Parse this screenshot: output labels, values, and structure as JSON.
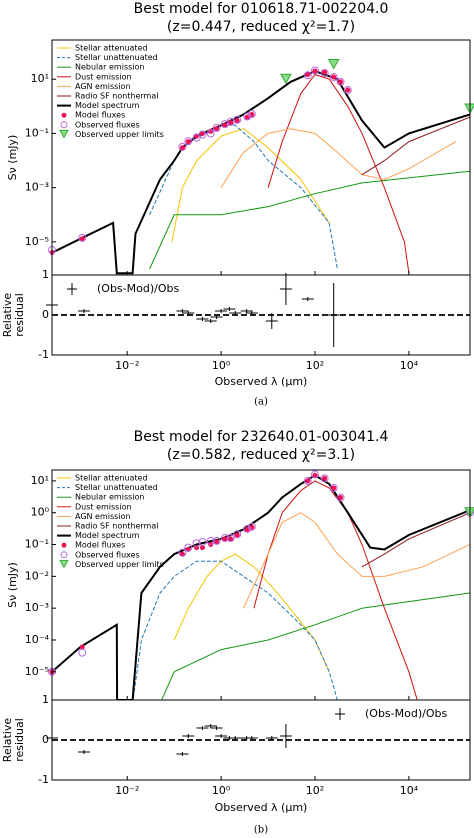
{
  "chart_data": [
    {
      "type": "sed",
      "title": "Best model for 010618.71-002204.0",
      "subtitle": "(z=0.447, reduced χ²=1.7)",
      "caption": "(a)",
      "x_label": "Observed λ (μm)",
      "y_label": "Sν (mJy)",
      "xlog": true,
      "ylog": true,
      "legend": "upper left",
      "xlim": [
        0.00025,
        200000
      ],
      "ylim": [
        6e-07,
        280
      ],
      "xticks": [
        {
          "value": 0.01,
          "label": "10⁻²"
        },
        {
          "value": 1,
          "label": "10⁰"
        },
        {
          "value": 100,
          "label": "10²"
        },
        {
          "value": 10000,
          "label": "10⁴"
        }
      ],
      "yticks": [
        {
          "value": 1e-05,
          "label": "10⁻⁵"
        },
        {
          "value": 0.001,
          "label": "10⁻³"
        },
        {
          "value": 0.1,
          "label": "10⁻¹"
        },
        {
          "value": 10,
          "label": "10¹"
        }
      ],
      "series": [
        {
          "name": "Stellar attenuated",
          "color": "#f5c400",
          "style": "solid",
          "x": [
            0.09,
            0.15,
            0.3,
            1,
            3,
            10,
            50,
            200
          ],
          "values": [
            1e-05,
            0.001,
            0.01,
            0.08,
            0.15,
            0.03,
            0.002,
            5e-05
          ]
        },
        {
          "name": "Stellar unattenuated",
          "color": "#1f77b4",
          "style": "dashed",
          "x": [
            0.03,
            0.1,
            0.2,
            0.5,
            1,
            2,
            5,
            10,
            50,
            200,
            300
          ],
          "values": [
            0.0001,
            0.01,
            0.05,
            0.1,
            0.2,
            0.2,
            0.05,
            0.01,
            0.001,
            5e-05,
            1e-06
          ]
        },
        {
          "name": "Nebular emission",
          "color": "#119911",
          "style": "solid",
          "x": [
            0.03,
            0.1,
            1,
            10,
            100,
            1000,
            200000
          ],
          "values": [
            1e-06,
            0.0001,
            0.0001,
            0.0002,
            0.0006,
            0.0015,
            0.004
          ]
        },
        {
          "name": "Dust emission",
          "color": "#cc1111",
          "style": "solid",
          "x": [
            10,
            20,
            50,
            100,
            200,
            500,
            1000,
            3000,
            8000,
            10000
          ],
          "values": [
            0.001,
            0.05,
            3,
            15,
            10,
            1,
            0.1,
            0.001,
            1e-05,
            7e-07
          ]
        },
        {
          "name": "AGN emission",
          "color": "#ffa050",
          "style": "solid",
          "x": [
            1,
            3,
            10,
            30,
            100,
            300,
            1000,
            3000,
            10000,
            100000
          ],
          "values": [
            0.001,
            0.02,
            0.1,
            0.15,
            0.1,
            0.02,
            0.003,
            0.002,
            0.005,
            0.05
          ]
        },
        {
          "name": "Radio SF nonthermal",
          "color": "#8b1a1a",
          "style": "solid",
          "x": [
            1000,
            3000,
            10000,
            200000
          ],
          "values": [
            0.003,
            0.01,
            0.05,
            0.4
          ]
        },
        {
          "name": "Model spectrum",
          "color": "#000000",
          "style": "thick",
          "x": [
            0.00025,
            0.001,
            0.005,
            0.006,
            0.013,
            0.015,
            0.05,
            0.1,
            0.15,
            0.3,
            1,
            3,
            10,
            30,
            100,
            300,
            1000,
            3000,
            10000,
            200000
          ],
          "values": [
            4e-06,
            1.3e-05,
            5e-05,
            7e-07,
            7e-07,
            2e-05,
            0.002,
            0.01,
            0.03,
            0.08,
            0.2,
            0.5,
            2,
            8,
            20,
            10,
            0.3,
            0.03,
            0.1,
            0.5
          ]
        },
        {
          "name": "Model fluxes",
          "color": "#ee1155",
          "style": "dot",
          "x": [
            0.00025,
            0.0011,
            0.15,
            0.2,
            0.3,
            0.4,
            0.6,
            0.8,
            1.2,
            1.6,
            2.2,
            3.6,
            4.5,
            70,
            100,
            160,
            250,
            350,
            500
          ],
          "values": [
            4e-06,
            1.3e-05,
            0.03,
            0.05,
            0.08,
            0.1,
            0.12,
            0.15,
            0.2,
            0.25,
            0.3,
            0.4,
            0.5,
            15,
            20,
            18,
            12,
            8,
            4
          ]
        },
        {
          "name": "Observed fluxes",
          "color": "#bb66dd",
          "style": "circle",
          "x": [
            0.00025,
            0.0011,
            0.15,
            0.2,
            0.3,
            0.4,
            0.6,
            0.8,
            1.2,
            1.6,
            2.2,
            3.6,
            4.5,
            70,
            100,
            160,
            250,
            350,
            500
          ],
          "values": [
            5e-06,
            1.4e-05,
            0.032,
            0.052,
            0.07,
            0.09,
            0.1,
            0.16,
            0.22,
            0.27,
            0.32,
            0.42,
            0.52,
            14,
            21,
            17,
            12,
            8,
            4
          ]
        },
        {
          "name": "Observed upper limits",
          "color": "#33aa33",
          "style": "triangle",
          "x": [
            24,
            250,
            200000
          ],
          "values": [
            10,
            35,
            0.8
          ]
        }
      ],
      "residual": {
        "name": "(Obs-Mod)/Obs",
        "y_label": [
          "Relative",
          "residual"
        ],
        "legend": "upper left",
        "ylim": [
          -1,
          1
        ],
        "yticks": [
          -1,
          0,
          1
        ],
        "x": [
          0.00025,
          0.0012,
          0.15,
          0.2,
          0.4,
          0.6,
          0.8,
          1,
          1.5,
          2,
          3.5,
          4.5,
          12,
          24,
          70,
          250
        ],
        "values": [
          0.25,
          0.1,
          0.1,
          0.05,
          -0.1,
          -0.15,
          -0.05,
          0.1,
          0.15,
          0.05,
          0.1,
          0.05,
          -0.15,
          0.65,
          0.4,
          0
        ],
        "errors": [
          0.3,
          0.05,
          0.05,
          0.05,
          0.05,
          0.05,
          0.05,
          0.05,
          0.05,
          0.05,
          0.05,
          0.05,
          0.2,
          0.4,
          0.05,
          0.8
        ]
      }
    },
    {
      "type": "sed",
      "title": "Best model for 232640.01-003041.4",
      "subtitle": "(z=0.582, reduced χ²=3.1)",
      "caption": "(b)",
      "x_label": "Observed λ (μm)",
      "y_label": "Sν (mJy)",
      "xlog": true,
      "ylog": true,
      "legend": "upper left",
      "xlim": [
        0.00025,
        200000
      ],
      "ylim": [
        1.3e-06,
        22
      ],
      "xticks": [
        {
          "value": 0.01,
          "label": "10⁻²"
        },
        {
          "value": 1,
          "label": "10⁰"
        },
        {
          "value": 100,
          "label": "10²"
        },
        {
          "value": 10000,
          "label": "10⁴"
        }
      ],
      "yticks": [
        {
          "value": 1e-05,
          "label": "10⁻⁵"
        },
        {
          "value": 0.0001,
          "label": "10⁻⁴"
        },
        {
          "value": 0.001,
          "label": "10⁻³"
        },
        {
          "value": 0.01,
          "label": "10⁻²"
        },
        {
          "value": 0.1,
          "label": "10⁻¹"
        },
        {
          "value": 1,
          "label": "10⁰"
        },
        {
          "value": 10,
          "label": "10¹"
        }
      ],
      "series": [
        {
          "name": "Stellar attenuated",
          "color": "#f5c400",
          "style": "solid",
          "x": [
            0.1,
            0.2,
            0.5,
            1,
            2,
            5,
            20,
            100,
            200
          ],
          "values": [
            0.0001,
            0.001,
            0.01,
            0.03,
            0.05,
            0.02,
            0.002,
            0.0001,
            1e-05
          ]
        },
        {
          "name": "Stellar unattenuated",
          "color": "#1f77b4",
          "style": "dashed",
          "x": [
            0.013,
            0.02,
            0.05,
            0.1,
            0.3,
            1,
            3,
            10,
            50,
            100,
            200,
            300
          ],
          "values": [
            1e-06,
            0.0001,
            0.003,
            0.01,
            0.03,
            0.03,
            0.01,
            0.003,
            0.0003,
            0.0001,
            1e-05,
            1.3e-06
          ]
        },
        {
          "name": "Nebular emission",
          "color": "#119911",
          "style": "solid",
          "x": [
            0.05,
            0.1,
            1,
            10,
            100,
            1000,
            200000
          ],
          "values": [
            1e-06,
            1e-05,
            5e-05,
            0.0001,
            0.0003,
            0.001,
            0.003
          ]
        },
        {
          "name": "Dust emission",
          "color": "#cc1111",
          "style": "solid",
          "x": [
            5,
            10,
            20,
            50,
            100,
            200,
            500,
            1000,
            3000,
            10000,
            15000
          ],
          "values": [
            0.001,
            0.05,
            1,
            5,
            10,
            6,
            1,
            0.1,
            0.001,
            1e-05,
            1.3e-06
          ]
        },
        {
          "name": "AGN emission",
          "color": "#ffa050",
          "style": "solid",
          "x": [
            3,
            10,
            20,
            50,
            100,
            300,
            1000,
            3000,
            20000,
            200000
          ],
          "values": [
            0.001,
            0.05,
            0.5,
            1,
            0.5,
            0.05,
            0.01,
            0.01,
            0.02,
            0.1
          ]
        },
        {
          "name": "Radio SF nonthermal",
          "color": "#8b1a1a",
          "style": "solid",
          "x": [
            1000,
            3000,
            10000,
            200000
          ],
          "values": [
            0.02,
            0.05,
            0.15,
            1
          ]
        },
        {
          "name": "Model spectrum",
          "color": "#000000",
          "style": "thick",
          "x": [
            0.00025,
            0.001,
            0.006,
            0.0061,
            0.013,
            0.02,
            0.05,
            0.1,
            0.3,
            1,
            3,
            10,
            20,
            50,
            100,
            200,
            500,
            1500,
            3000,
            10000,
            200000
          ],
          "values": [
            1e-05,
            6e-05,
            0.0003,
            1.3e-06,
            1.3e-06,
            0.003,
            0.02,
            0.05,
            0.1,
            0.15,
            0.3,
            1,
            3,
            8,
            15,
            8,
            1,
            0.08,
            0.07,
            0.2,
            1.2
          ]
        },
        {
          "name": "Model fluxes",
          "color": "#ee1155",
          "style": "dot",
          "x": [
            0.00025,
            0.0011,
            0.15,
            0.2,
            0.3,
            0.4,
            0.6,
            0.8,
            1.2,
            1.6,
            2.2,
            3.6,
            4.5,
            70,
            100,
            160,
            250,
            350,
            200000
          ],
          "values": [
            1e-05,
            6e-05,
            0.05,
            0.07,
            0.08,
            0.08,
            0.1,
            0.12,
            0.15,
            0.15,
            0.2,
            0.3,
            0.35,
            10,
            15,
            12,
            6,
            3,
            1
          ]
        },
        {
          "name": "Observed fluxes",
          "color": "#bb66dd",
          "style": "circle",
          "x": [
            0.00025,
            0.0011,
            0.15,
            0.2,
            0.3,
            0.4,
            0.6,
            0.8,
            1.2,
            1.6,
            2.2,
            3.6,
            4.5,
            70,
            100,
            160,
            250,
            350,
            200000
          ],
          "values": [
            1e-05,
            4e-05,
            0.055,
            0.08,
            0.11,
            0.12,
            0.13,
            0.13,
            0.16,
            0.16,
            0.21,
            0.31,
            0.36,
            10,
            16,
            12,
            6,
            3,
            1
          ]
        },
        {
          "name": "Observed upper limits",
          "color": "#33aa33",
          "style": "triangle",
          "x": [
            200000
          ],
          "values": [
            1
          ]
        }
      ],
      "residual": {
        "name": "(Obs-Mod)/Obs",
        "y_label": [
          "Relative",
          "residual"
        ],
        "legend": "upper right",
        "ylim": [
          -1,
          1
        ],
        "yticks": [
          -1,
          0,
          1
        ],
        "x": [
          0.00025,
          0.0012,
          0.15,
          0.2,
          0.4,
          0.6,
          0.8,
          1,
          1.5,
          2,
          3.5,
          4.5,
          12,
          24
        ],
        "values": [
          0.05,
          -0.3,
          -0.35,
          0.1,
          0.3,
          0.35,
          0.3,
          0.1,
          0.05,
          0.05,
          0.05,
          0.05,
          0.05,
          0.1
        ],
        "errors": [
          0.05,
          0.05,
          0.05,
          0.05,
          0.05,
          0.05,
          0.05,
          0.05,
          0.05,
          0.05,
          0.05,
          0.05,
          0.05,
          0.3
        ]
      }
    }
  ]
}
